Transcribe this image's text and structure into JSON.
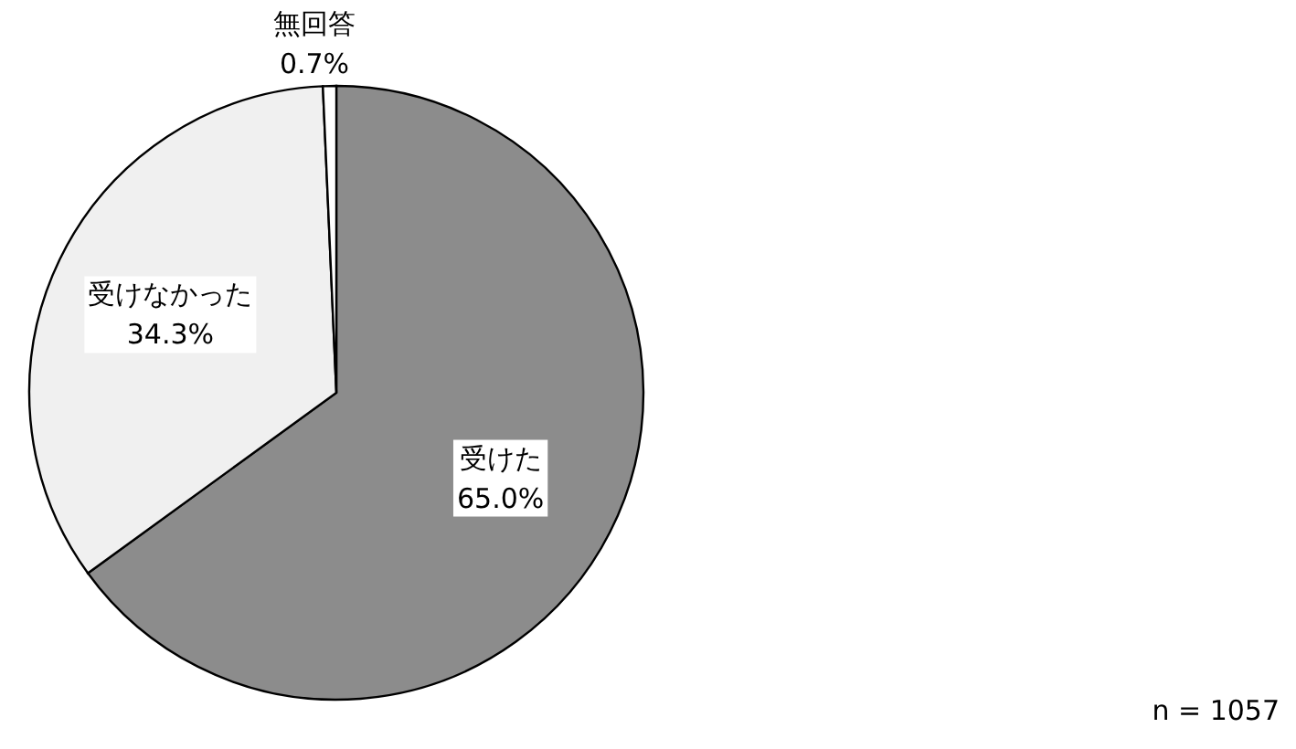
{
  "chart_data": {
    "type": "pie",
    "categories": [
      "受けた",
      "受けなかった",
      "無回答"
    ],
    "values": [
      65.0,
      34.3,
      0.7
    ],
    "value_labels": [
      "65.0%",
      "34.3%",
      "0.7%"
    ],
    "colors": [
      "#8c8c8c",
      "#f0f0f0",
      "#ffffff"
    ],
    "annotations": [
      "n = 1057"
    ],
    "legend": false
  }
}
